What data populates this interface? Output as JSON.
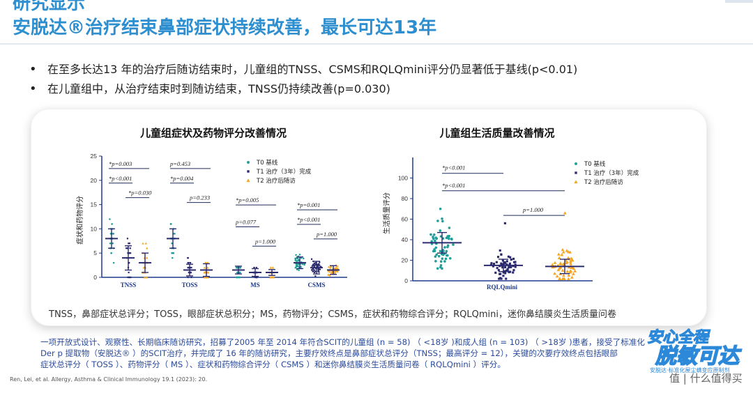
{
  "header": {
    "title_line1": "研究显示",
    "title_line2": "安脱达®治疗结束鼻部症状持续改善，最长可达13年"
  },
  "bullets": [
    "在至多长达13 年的治疗后随访结束时，儿童组的TNSS、CSMS和RQLQmini评分仍显著低于基线(p<0.01)",
    "在儿童组中，从治疗结束时到随访结束，TNSS仍持续改善(p=0.030)"
  ],
  "card_caption": "TNSS，鼻部症状总评分；TOSS，眼部症状总积分；MS，药物评分；CSMS，症状和药物综合评分；RQLQmini，迷你鼻结膜炎生活质量问卷",
  "description": [
    "一项开放式设计、观察性、长期临床随访研究，招募了2005 年至 2014 年符合SCIT的儿童组 (n = 58) （ <18岁 )和成人组 (n = 103) （ >18岁 )患者，接受了标准化",
    "Der p 提取物（安脱达® ）的SCIT治疗，并完成了 16 年的随访研究，主要疗效终点是鼻部症状总评分（TNSS；最高评分 = 12），关键的次要疗效终点包括眼部",
    "症状总评分（ TOSS ）、药物评分（ MS ）、症状和药物综合评分（ CSMS ）和迷你鼻结膜炎生活质量问卷（ RQLQmini ）评分。"
  ],
  "reference": "Ren, Lei, et al. Allergy, Asthma & Clinical Immunology 19.1 (2023): 20.",
  "logo": {
    "line1": "安心全程",
    "line2": "脱敏可达",
    "tagline": "安脱达·标准化屋尘螨变应原制剂"
  },
  "watermark": "值 | 什么值得买",
  "colors": {
    "title": "#2e8fd0",
    "t0": "#1f9e9a",
    "t1": "#2b2a6e",
    "t2": "#f5a623",
    "bracket": "#1f2b5a",
    "axis": "#1f3a8a",
    "description": "#2a4a9a"
  },
  "chart_data": [
    {
      "type": "scatter",
      "title": "儿童组症状及药物评分改善情况",
      "ylabel": "症状和药物评分",
      "ylim": [
        0,
        25
      ],
      "yticks": [
        0,
        5,
        10,
        15,
        20,
        25
      ],
      "categories": [
        "TNSS",
        "TOSS",
        "MS",
        "CSMS"
      ],
      "legend": [
        "T0 基线",
        "T1 治疗（3年）完成",
        "T2 治疗后随访"
      ],
      "legend_position": "top-right",
      "series": [
        {
          "name": "T0 基线",
          "mean": [
            8,
            8,
            1.5,
            3
          ],
          "sd": [
            2,
            2,
            0.8,
            1.2
          ],
          "max": [
            12,
            12,
            2,
            6
          ]
        },
        {
          "name": "T1 治疗（3年）完成",
          "mean": [
            4,
            1.5,
            1,
            2
          ],
          "sd": [
            2.5,
            1.2,
            0.8,
            1.3
          ],
          "max": [
            12,
            5,
            2,
            6
          ]
        },
        {
          "name": "T2 治疗后随访",
          "mean": [
            3,
            1.5,
            1,
            1.5
          ],
          "sd": [
            2,
            1.3,
            0.6,
            0.9
          ],
          "max": [
            12,
            6,
            2,
            5
          ]
        }
      ],
      "annotations": [
        {
          "category": "TNSS",
          "label": "*p=0.003",
          "y": 23
        },
        {
          "category": "TNSS",
          "label": "*p<0.001",
          "y": 20
        },
        {
          "category": "TNSS",
          "label": "*p=0.030",
          "y": 17
        },
        {
          "category": "TOSS",
          "label": "p=0.453",
          "y": 23
        },
        {
          "category": "TOSS",
          "label": "*p=0.004",
          "y": 20
        },
        {
          "category": "TOSS",
          "label": "p=0.233",
          "y": 16
        },
        {
          "category": "MS",
          "label": "*p=0.005",
          "y": 15.5
        },
        {
          "category": "MS",
          "label": "p=0.077",
          "y": 11
        },
        {
          "category": "MS",
          "label": "p=1.000",
          "y": 7
        },
        {
          "category": "CSMS",
          "label": "*p=0.001",
          "y": 14.5
        },
        {
          "category": "CSMS",
          "label": "*p<0.001",
          "y": 11.5
        },
        {
          "category": "CSMS",
          "label": "p=1.000",
          "y": 8.5
        }
      ]
    },
    {
      "type": "scatter",
      "title": "儿童组生活质量改善情况",
      "ylabel": "生活质量评分",
      "ylim": [
        0,
        120
      ],
      "yticks": [
        0,
        20,
        40,
        60,
        80,
        100
      ],
      "categories": [
        "RQLQmini"
      ],
      "legend": [
        "T0 基线",
        "T1 治疗（3年）完成",
        "T2 治疗后随访"
      ],
      "legend_position": "top-right",
      "series": [
        {
          "name": "T0 基线",
          "mean": [
            37
          ],
          "sd": [
            10
          ],
          "min": 12,
          "max": 70
        },
        {
          "name": "T1 治疗（3年）完成",
          "mean": [
            15
          ],
          "sd": [
            6
          ],
          "min": 2,
          "max": 56
        },
        {
          "name": "T2 治疗后随访",
          "mean": [
            14
          ],
          "sd": [
            7
          ],
          "min": 2,
          "max": 66
        }
      ],
      "annotations": [
        {
          "label": "*p<0.001",
          "y": 108
        },
        {
          "label": "*p<0.001",
          "y": 91
        },
        {
          "label": "p=1.000",
          "y": 67
        }
      ]
    }
  ]
}
